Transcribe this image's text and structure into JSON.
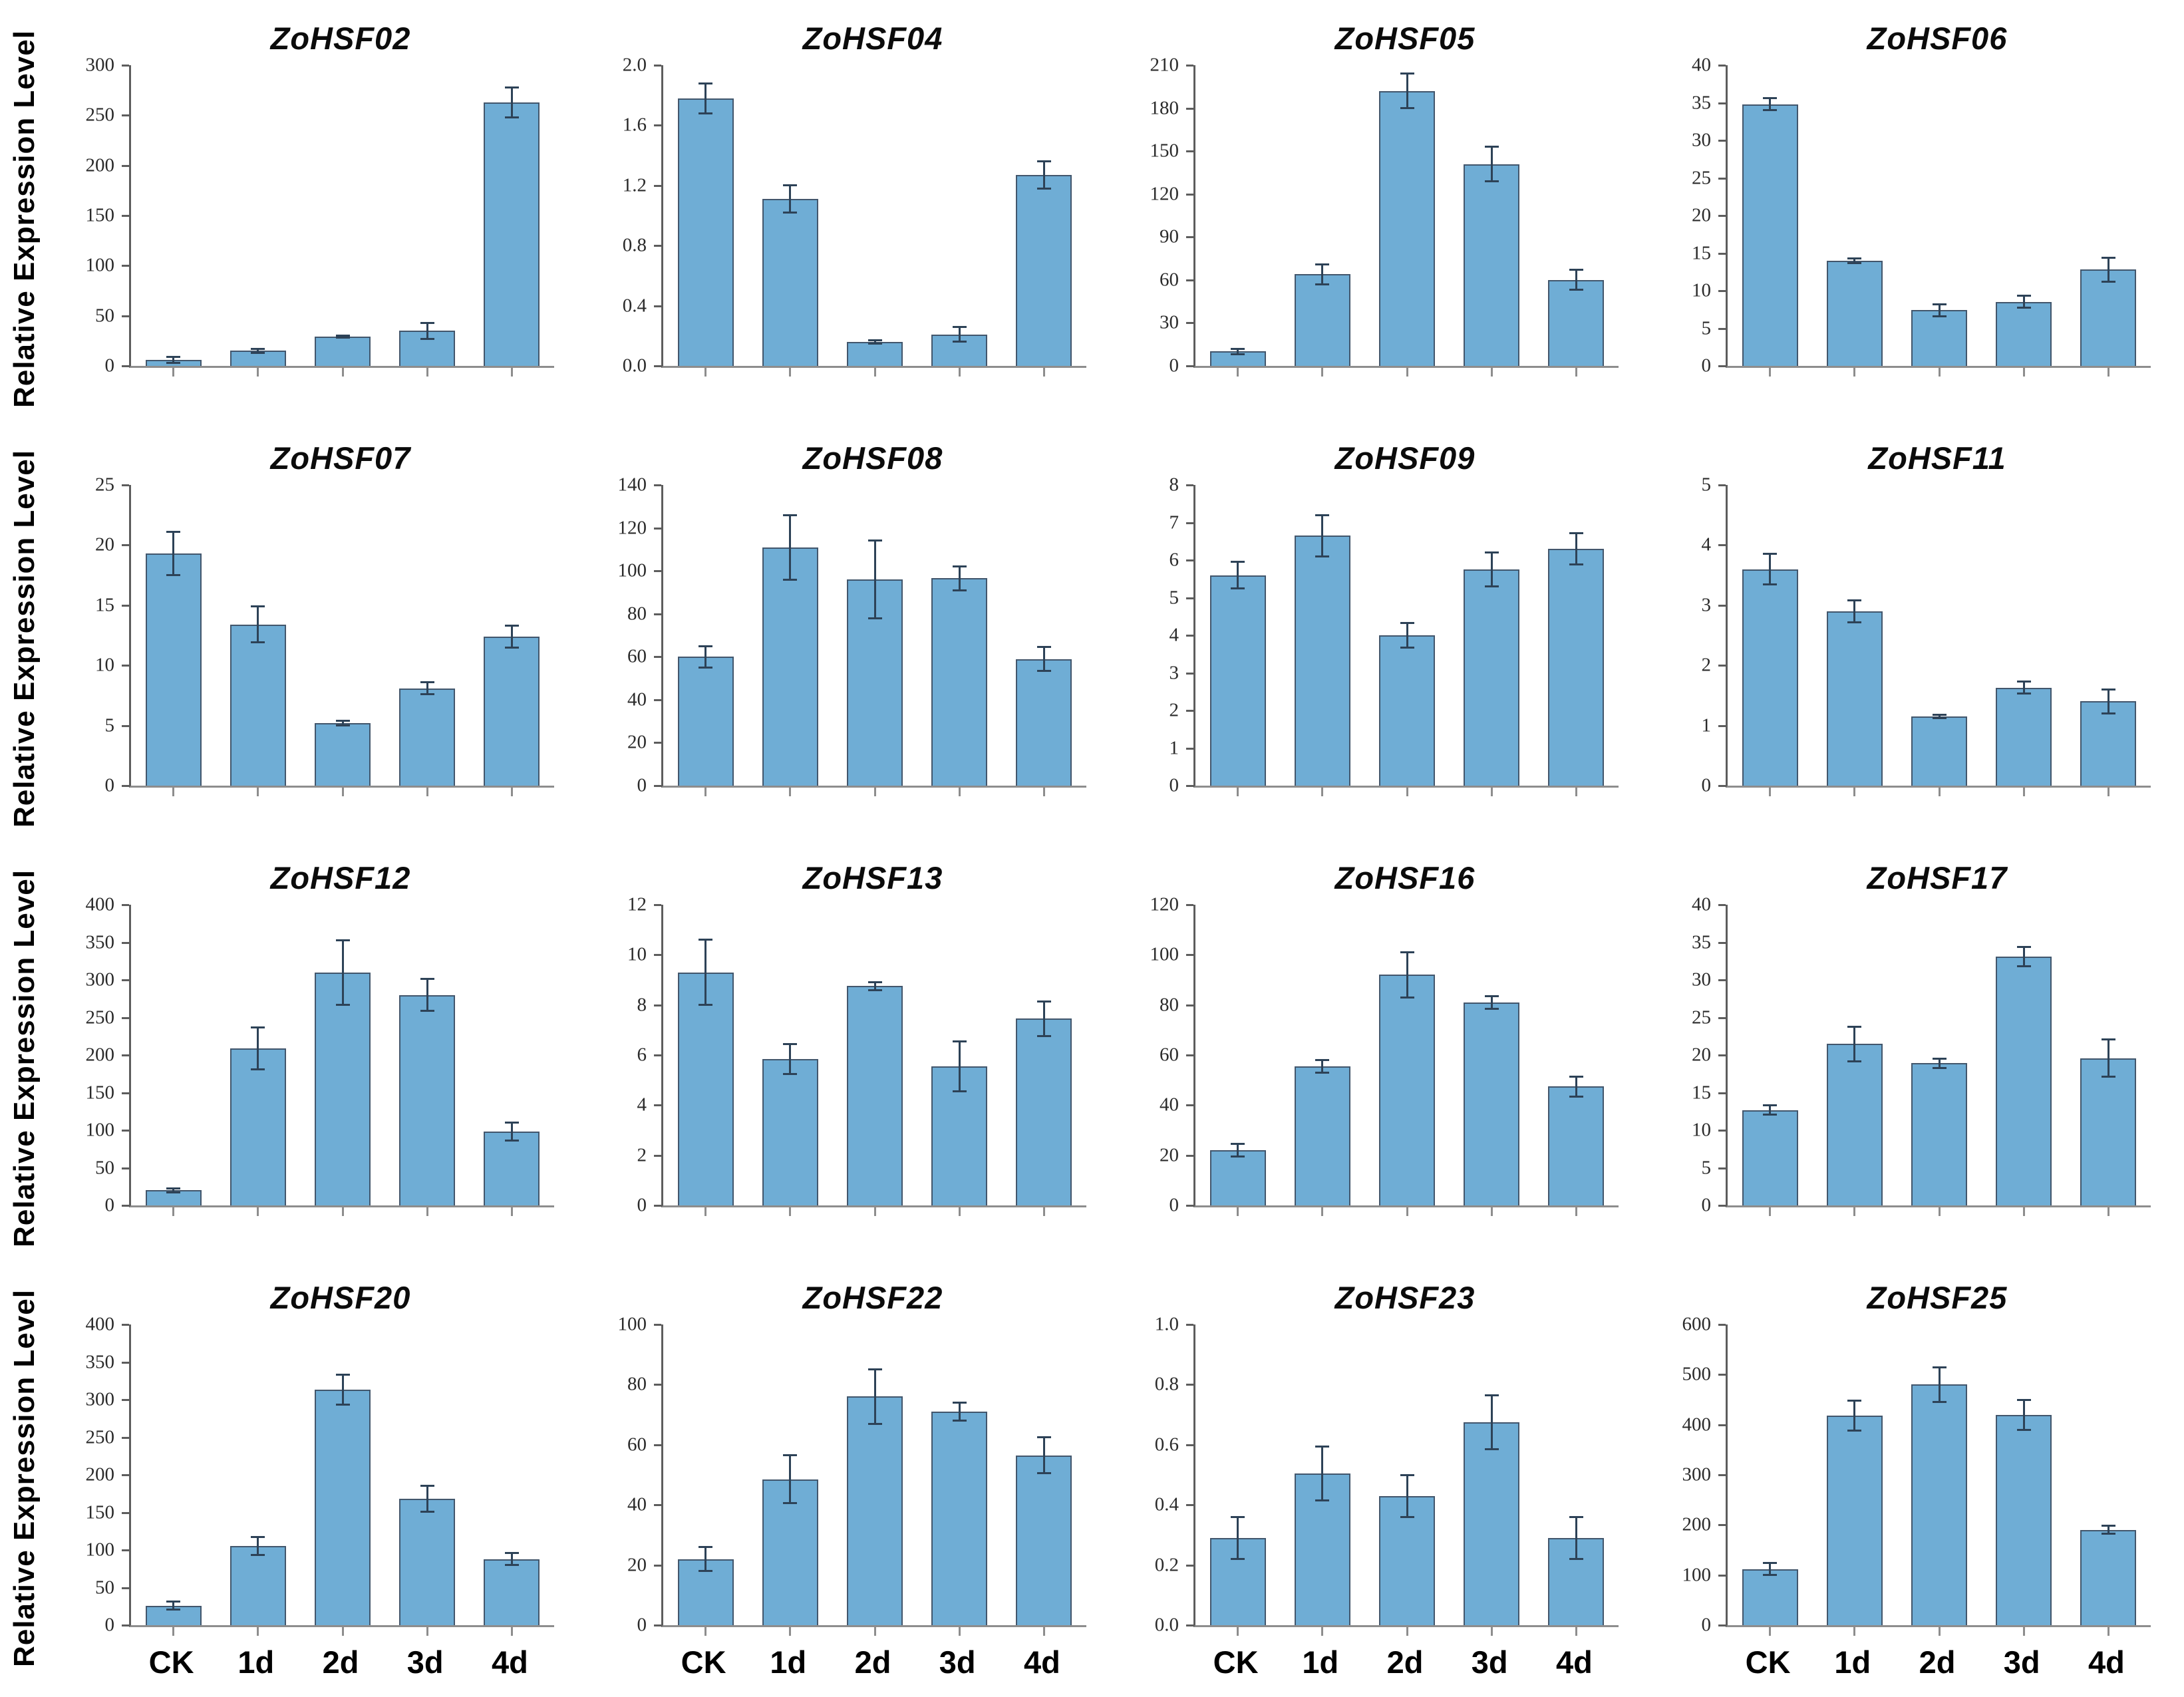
{
  "figure": {
    "ylabel": "Relative Expression Level",
    "bar_fill_color": "#6fadd5",
    "bar_border_color": "#42566c",
    "error_bar_color": "#2d4257",
    "categories": [
      "CK",
      "1d",
      "2d",
      "3d",
      "4d"
    ]
  },
  "chart_data": [
    {
      "type": "bar",
      "title": "ZoHSF02",
      "categories": [
        "CK",
        "1d",
        "2d",
        "3d",
        "4d"
      ],
      "values": [
        6,
        15,
        29,
        35,
        263
      ],
      "errors": [
        3,
        2,
        1,
        8,
        15
      ],
      "yticks": [
        "0",
        "50",
        "100",
        "150",
        "200",
        "250",
        "300"
      ],
      "ylim": [
        0,
        300
      ],
      "xlabel": "",
      "ylabel": "Relative Expression Level",
      "grid": false,
      "legend": "none"
    },
    {
      "type": "bar",
      "title": "ZoHSF04",
      "categories": [
        "CK",
        "1d",
        "2d",
        "3d",
        "4d"
      ],
      "values": [
        1.78,
        1.11,
        0.16,
        0.21,
        1.27
      ],
      "errors": [
        0.1,
        0.09,
        0.01,
        0.05,
        0.09
      ],
      "yticks": [
        "0.0",
        "0.4",
        "0.8",
        "1.2",
        "1.6",
        "2.0"
      ],
      "ylim": [
        0,
        2.0
      ],
      "xlabel": "",
      "ylabel": "Relative Expression Level",
      "grid": false,
      "legend": "none"
    },
    {
      "type": "bar",
      "title": "ZoHSF05",
      "categories": [
        "CK",
        "1d",
        "2d",
        "3d",
        "4d"
      ],
      "values": [
        10,
        64,
        192,
        141,
        60
      ],
      "errors": [
        2,
        7,
        12,
        12,
        7
      ],
      "yticks": [
        "0",
        "30",
        "60",
        "90",
        "120",
        "150",
        "180",
        "210"
      ],
      "ylim": [
        0,
        210
      ],
      "xlabel": "",
      "ylabel": "Relative Expression Level",
      "grid": false,
      "legend": "none"
    },
    {
      "type": "bar",
      "title": "ZoHSF06",
      "categories": [
        "CK",
        "1d",
        "2d",
        "3d",
        "4d"
      ],
      "values": [
        34.8,
        14.0,
        7.4,
        8.5,
        12.8
      ],
      "errors": [
        0.8,
        0.3,
        0.8,
        0.8,
        1.6
      ],
      "yticks": [
        "0",
        "5",
        "10",
        "15",
        "20",
        "25",
        "30",
        "35",
        "40"
      ],
      "ylim": [
        0,
        40
      ],
      "xlabel": "",
      "ylabel": "Relative Expression Level",
      "grid": false,
      "legend": "none"
    },
    {
      "type": "bar",
      "title": "ZoHSF07",
      "categories": [
        "CK",
        "1d",
        "2d",
        "3d",
        "4d"
      ],
      "values": [
        19.3,
        13.4,
        5.2,
        8.1,
        12.4
      ],
      "errors": [
        1.8,
        1.5,
        0.2,
        0.5,
        0.9
      ],
      "yticks": [
        "0",
        "5",
        "10",
        "15",
        "20",
        "25"
      ],
      "ylim": [
        0,
        25
      ],
      "xlabel": "",
      "ylabel": "Relative Expression Level",
      "grid": false,
      "legend": "none"
    },
    {
      "type": "bar",
      "title": "ZoHSF08",
      "categories": [
        "CK",
        "1d",
        "2d",
        "3d",
        "4d"
      ],
      "values": [
        60,
        111,
        96,
        96.5,
        59
      ],
      "errors": [
        5,
        15,
        18,
        5.5,
        5.5
      ],
      "yticks": [
        "0",
        "20",
        "40",
        "60",
        "80",
        "100",
        "120",
        "140"
      ],
      "ylim": [
        0,
        140
      ],
      "xlabel": "",
      "ylabel": "Relative Expression Level",
      "grid": false,
      "legend": "none"
    },
    {
      "type": "bar",
      "title": "ZoHSF09",
      "categories": [
        "CK",
        "1d",
        "2d",
        "3d",
        "4d"
      ],
      "values": [
        5.6,
        6.65,
        4.0,
        5.75,
        6.3
      ],
      "errors": [
        0.35,
        0.55,
        0.33,
        0.45,
        0.42
      ],
      "yticks": [
        "0",
        "1",
        "2",
        "3",
        "4",
        "5",
        "6",
        "7",
        "8"
      ],
      "ylim": [
        0,
        8
      ],
      "xlabel": "",
      "ylabel": "Relative Expression Level",
      "grid": false,
      "legend": "none"
    },
    {
      "type": "bar",
      "title": "ZoHSF11",
      "categories": [
        "CK",
        "1d",
        "2d",
        "3d",
        "4d"
      ],
      "values": [
        3.6,
        2.9,
        1.15,
        1.63,
        1.4
      ],
      "errors": [
        0.25,
        0.18,
        0.03,
        0.1,
        0.2
      ],
      "yticks": [
        "0",
        "1",
        "2",
        "3",
        "4",
        "5"
      ],
      "ylim": [
        0,
        5
      ],
      "xlabel": "",
      "ylabel": "Relative Expression Level",
      "grid": false,
      "legend": "none"
    },
    {
      "type": "bar",
      "title": "ZoHSF12",
      "categories": [
        "CK",
        "1d",
        "2d",
        "3d",
        "4d"
      ],
      "values": [
        20,
        209,
        310,
        280,
        98
      ],
      "errors": [
        3,
        28,
        43,
        21,
        12
      ],
      "yticks": [
        "0",
        "50",
        "100",
        "150",
        "200",
        "250",
        "300",
        "350",
        "400"
      ],
      "ylim": [
        0,
        400
      ],
      "xlabel": "",
      "ylabel": "Relative Expression Level",
      "grid": false,
      "legend": "none"
    },
    {
      "type": "bar",
      "title": "ZoHSF13",
      "categories": [
        "CK",
        "1d",
        "2d",
        "3d",
        "4d"
      ],
      "values": [
        9.3,
        5.85,
        8.75,
        5.55,
        7.45
      ],
      "errors": [
        1.3,
        0.6,
        0.15,
        1.0,
        0.7
      ],
      "yticks": [
        "0",
        "2",
        "4",
        "6",
        "8",
        "10",
        "12"
      ],
      "ylim": [
        0,
        12
      ],
      "xlabel": "",
      "ylabel": "Relative Expression Level",
      "grid": false,
      "legend": "none"
    },
    {
      "type": "bar",
      "title": "ZoHSF16",
      "categories": [
        "CK",
        "1d",
        "2d",
        "3d",
        "4d"
      ],
      "values": [
        22,
        55.5,
        92,
        81,
        47.5
      ],
      "errors": [
        2.5,
        2.5,
        9,
        2.5,
        4
      ],
      "yticks": [
        "0",
        "20",
        "40",
        "60",
        "80",
        "100",
        "120"
      ],
      "ylim": [
        0,
        120
      ],
      "xlabel": "",
      "ylabel": "Relative Expression Level",
      "grid": false,
      "legend": "none"
    },
    {
      "type": "bar",
      "title": "ZoHSF17",
      "categories": [
        "CK",
        "1d",
        "2d",
        "3d",
        "4d"
      ],
      "values": [
        12.7,
        21.5,
        18.9,
        33.1,
        19.6
      ],
      "errors": [
        0.6,
        2.3,
        0.6,
        1.3,
        2.5
      ],
      "yticks": [
        "0",
        "5",
        "10",
        "15",
        "20",
        "25",
        "30",
        "35",
        "40"
      ],
      "ylim": [
        0,
        40
      ],
      "xlabel": "",
      "ylabel": "Relative Expression Level",
      "grid": false,
      "legend": "none"
    },
    {
      "type": "bar",
      "title": "ZoHSF20",
      "categories": [
        "CK",
        "1d",
        "2d",
        "3d",
        "4d"
      ],
      "values": [
        26,
        105,
        313,
        168,
        88
      ],
      "errors": [
        5,
        12,
        20,
        17,
        8
      ],
      "yticks": [
        "0",
        "50",
        "100",
        "150",
        "200",
        "250",
        "300",
        "350",
        "400"
      ],
      "ylim": [
        0,
        400
      ],
      "xlabel": "",
      "ylabel": "Relative Expression Level",
      "grid": false,
      "legend": "none"
    },
    {
      "type": "bar",
      "title": "ZoHSF22",
      "categories": [
        "CK",
        "1d",
        "2d",
        "3d",
        "4d"
      ],
      "values": [
        22,
        48.5,
        76,
        71,
        56.5
      ],
      "errors": [
        4,
        8,
        9,
        3,
        6
      ],
      "yticks": [
        "0",
        "20",
        "40",
        "60",
        "80",
        "100"
      ],
      "ylim": [
        0,
        100
      ],
      "xlabel": "",
      "ylabel": "Relative Expression Level",
      "grid": false,
      "legend": "none"
    },
    {
      "type": "bar",
      "title": "ZoHSF23",
      "categories": [
        "CK",
        "1d",
        "2d",
        "3d",
        "4d"
      ],
      "values": [
        0.29,
        0.505,
        0.43,
        0.675,
        0.29
      ],
      "errors": [
        0.07,
        0.09,
        0.07,
        0.09,
        0.07
      ],
      "yticks": [
        "0.0",
        "0.2",
        "0.4",
        "0.6",
        "0.8",
        "1.0"
      ],
      "ylim": [
        0,
        1.0
      ],
      "xlabel": "",
      "ylabel": "Relative Expression Level",
      "grid": false,
      "legend": "none"
    },
    {
      "type": "bar",
      "title": "ZoHSF25",
      "categories": [
        "CK",
        "1d",
        "2d",
        "3d",
        "4d"
      ],
      "values": [
        112,
        418,
        480,
        420,
        190
      ],
      "errors": [
        12,
        30,
        35,
        30,
        8
      ],
      "yticks": [
        "0",
        "100",
        "200",
        "300",
        "400",
        "500",
        "600"
      ],
      "ylim": [
        0,
        600
      ],
      "xlabel": "",
      "ylabel": "Relative Expression Level",
      "grid": false,
      "legend": "none"
    }
  ]
}
